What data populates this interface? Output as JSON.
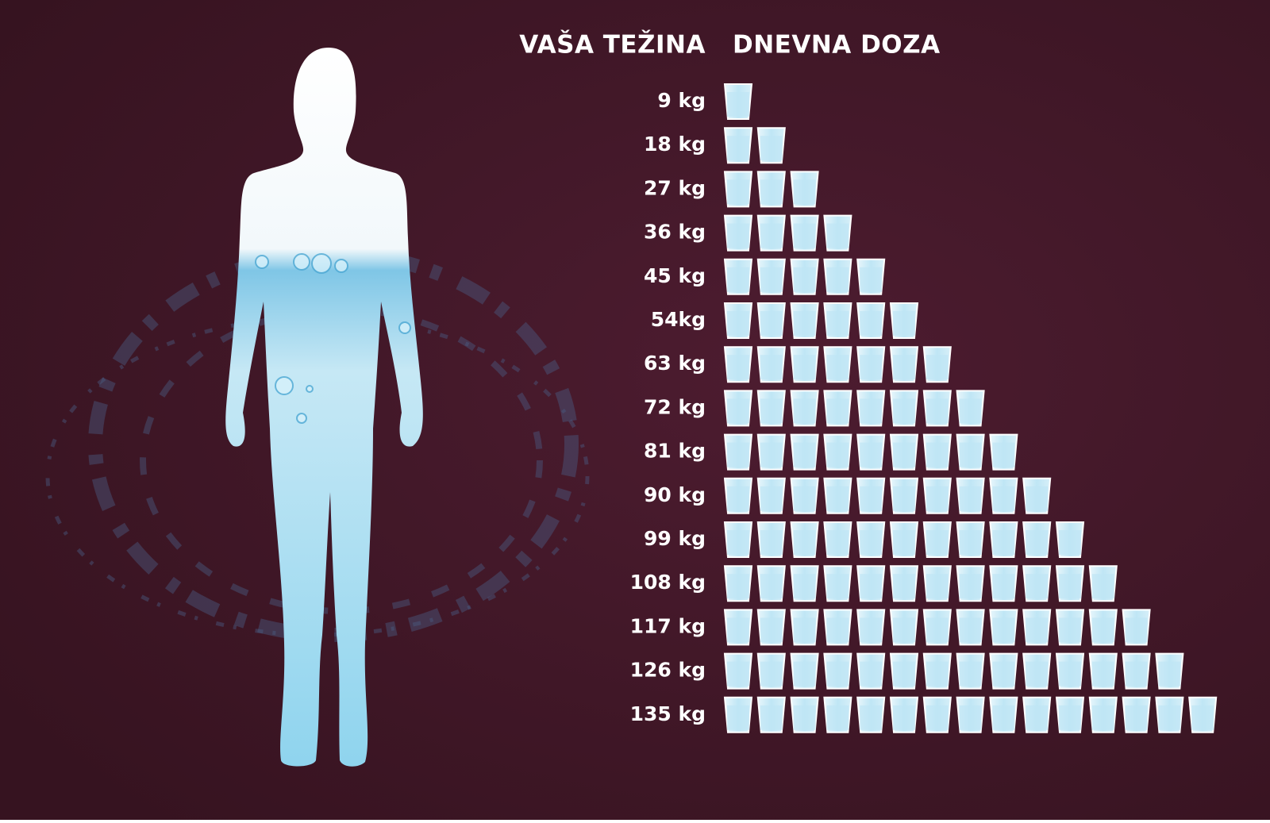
{
  "chart_data": {
    "type": "pictogram",
    "category_header": "VAŠA TEŽINA",
    "value_header": "DNEVNA DOZA",
    "categories": [
      "9 kg",
      "18 kg",
      "27 kg",
      "36 kg",
      "45 kg",
      "54kg",
      "63 kg",
      "72 kg",
      "81 kg",
      "90 kg",
      "99 kg",
      "108 kg",
      "117 kg",
      "126 kg",
      "135 kg"
    ],
    "values": [
      1,
      2,
      3,
      4,
      5,
      6,
      7,
      8,
      9,
      10,
      11,
      12,
      13,
      14,
      15
    ],
    "color": "#bfe6f5"
  }
}
